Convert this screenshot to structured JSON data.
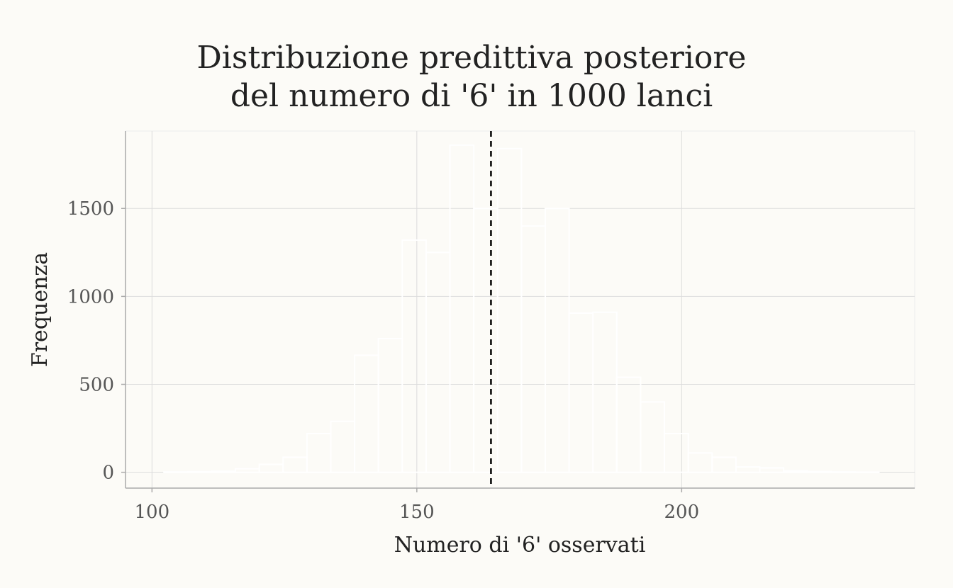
{
  "chart_data": {
    "type": "bar",
    "title_lines": [
      "Distribuzione predittiva posteriore",
      "del numero di '6' in 1000 lanci"
    ],
    "xlabel": "Numero di '6' osservati",
    "ylabel": "Frequenza",
    "xlim": [
      95,
      244
    ],
    "ylim": [
      -90,
      1940
    ],
    "xticks": [
      100,
      150,
      200
    ],
    "yticks": [
      0,
      500,
      1000,
      1500
    ],
    "bin_width": 4.5,
    "bins": [
      {
        "x": 104.5,
        "count": 2
      },
      {
        "x": 109.0,
        "count": 3
      },
      {
        "x": 113.5,
        "count": 6
      },
      {
        "x": 118.0,
        "count": 20
      },
      {
        "x": 122.5,
        "count": 45
      },
      {
        "x": 127.0,
        "count": 85
      },
      {
        "x": 131.5,
        "count": 220
      },
      {
        "x": 136.0,
        "count": 290
      },
      {
        "x": 140.5,
        "count": 665
      },
      {
        "x": 145.0,
        "count": 760
      },
      {
        "x": 149.5,
        "count": 1320
      },
      {
        "x": 154.0,
        "count": 1250
      },
      {
        "x": 158.5,
        "count": 1860
      },
      {
        "x": 163.0,
        "count": 1500
      },
      {
        "x": 167.5,
        "count": 1840
      },
      {
        "x": 172.0,
        "count": 1400
      },
      {
        "x": 176.5,
        "count": 1500
      },
      {
        "x": 181.0,
        "count": 905
      },
      {
        "x": 185.5,
        "count": 910
      },
      {
        "x": 190.0,
        "count": 540
      },
      {
        "x": 194.5,
        "count": 400
      },
      {
        "x": 199.0,
        "count": 220
      },
      {
        "x": 203.5,
        "count": 110
      },
      {
        "x": 208.0,
        "count": 85
      },
      {
        "x": 212.5,
        "count": 30
      },
      {
        "x": 217.0,
        "count": 25
      },
      {
        "x": 221.5,
        "count": 8
      },
      {
        "x": 226.0,
        "count": 4
      },
      {
        "x": 230.5,
        "count": 2
      },
      {
        "x": 235.0,
        "count": 1
      }
    ],
    "reference_line": {
      "x": 164,
      "style": "dashed",
      "color": "#000000"
    },
    "grid": true,
    "legend": "none",
    "colors": {
      "background": "#fcfbf7",
      "bar_outline": "#ffffff",
      "grid": "#dcdcdc",
      "axis": "#aaaaaa"
    }
  }
}
